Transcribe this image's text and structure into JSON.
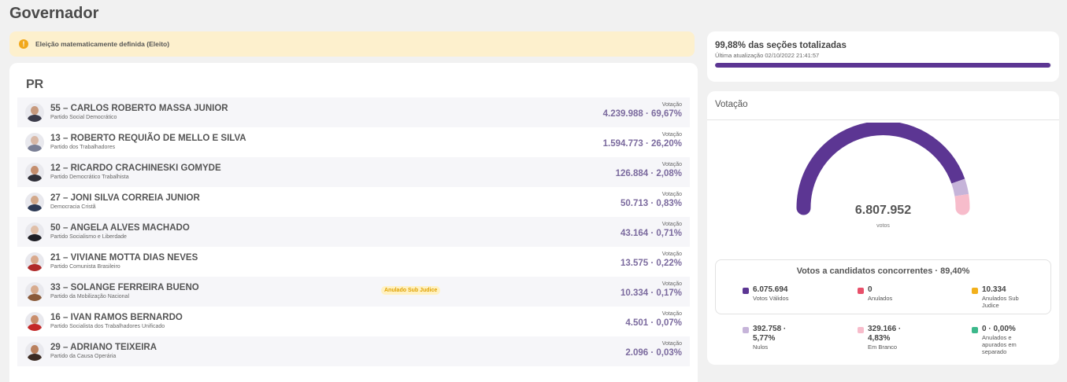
{
  "page": {
    "title": "Governador"
  },
  "alert": {
    "icon": "info-icon",
    "text": "Eleição matematicamente definida (Eleito)"
  },
  "results": {
    "state": "PR",
    "votes_label": "Votação",
    "candidates": [
      {
        "name": "55 – CARLOS ROBERTO MASSA JUNIOR",
        "party": "Partido Social Democrático",
        "votes": "4.239.988 · 69,67%",
        "badge": "",
        "avatar_head": "#c79a7e",
        "avatar_body": "#3b3b4a"
      },
      {
        "name": "13 – ROBERTO REQUIÃO DE MELLO E SILVA",
        "party": "Partido dos Trabalhadores",
        "votes": "1.594.773 · 26,20%",
        "badge": "",
        "avatar_head": "#d8b8a6",
        "avatar_body": "#7a7f95"
      },
      {
        "name": "12 – RICARDO CRACHINESKI GOMYDE",
        "party": "Partido Democrático Trabalhista",
        "votes": "126.884 · 2,08%",
        "badge": "",
        "avatar_head": "#c48e6e",
        "avatar_body": "#2f2f38"
      },
      {
        "name": "27 – JONI SILVA CORREIA JUNIOR",
        "party": "Democracia Cristã",
        "votes": "50.713 · 0,83%",
        "badge": "",
        "avatar_head": "#d2a88a",
        "avatar_body": "#2d3a55"
      },
      {
        "name": "50 – ANGELA ALVES MACHADO",
        "party": "Partido Socialismo e Liberdade",
        "votes": "43.164 · 0,71%",
        "badge": "",
        "avatar_head": "#e0bfa8",
        "avatar_body": "#1e1e24"
      },
      {
        "name": "21 – VIVIANE MOTTA DIAS NEVES",
        "party": "Partido Comunista Brasileiro",
        "votes": "13.575 · 0,22%",
        "badge": "",
        "avatar_head": "#d9a98c",
        "avatar_body": "#b02a2a"
      },
      {
        "name": "33 – SOLANGE FERREIRA BUENO",
        "party": "Partido da Mobilização Nacional",
        "votes": "10.334 · 0,17%",
        "badge": "Anulado Sub Judice",
        "avatar_head": "#d7ab8e",
        "avatar_body": "#8a5a3a"
      },
      {
        "name": "16 – IVAN RAMOS BERNARDO",
        "party": "Partido Socialista dos Trabalhadores Unificado",
        "votes": "4.501 · 0,07%",
        "badge": "",
        "avatar_head": "#c98e6c",
        "avatar_body": "#c42828"
      },
      {
        "name": "29 – ADRIANO TEIXEIRA",
        "party": "Partido da Causa Operária",
        "votes": "2.096 · 0,03%",
        "badge": "",
        "avatar_head": "#b9805e",
        "avatar_body": "#3b2b24"
      }
    ]
  },
  "progress": {
    "title": "99,88% das seções totalizadas",
    "updated": "Última atualização 02/10/2022 21:41:57",
    "fraction": 0.9988,
    "color": "#5c3693"
  },
  "voting": {
    "title": "Votação",
    "total": "6.807.952",
    "unit": "votos",
    "gauge": [
      {
        "key": "validos",
        "fraction": 0.8924,
        "color": "#5c3693"
      },
      {
        "key": "nulos",
        "fraction": 0.0577,
        "color": "#c6b4d9"
      },
      {
        "key": "brancos",
        "fraction": 0.0483,
        "color": "#f7bccb"
      }
    ],
    "summary_title": "Votos a candidatos concorrentes · 89,40%",
    "stats": [
      {
        "value": "6.075.694",
        "label": "Votos Válidos",
        "color": "#5c3693"
      },
      {
        "value": "0",
        "label": "Anulados",
        "color": "#e8506a"
      },
      {
        "value": "10.334",
        "label": "Anulados Sub Judice",
        "color": "#f2b01b"
      },
      {
        "value": "392.758 · 5,77%",
        "label": "Nulos",
        "color": "#c6b4d9"
      },
      {
        "value": "329.166 · 4,83%",
        "label": "Em Branco",
        "color": "#f7bccb"
      },
      {
        "value": "0 · 0,00%",
        "label": "Anulados e apurados em separado",
        "color": "#3cb88b"
      }
    ]
  }
}
